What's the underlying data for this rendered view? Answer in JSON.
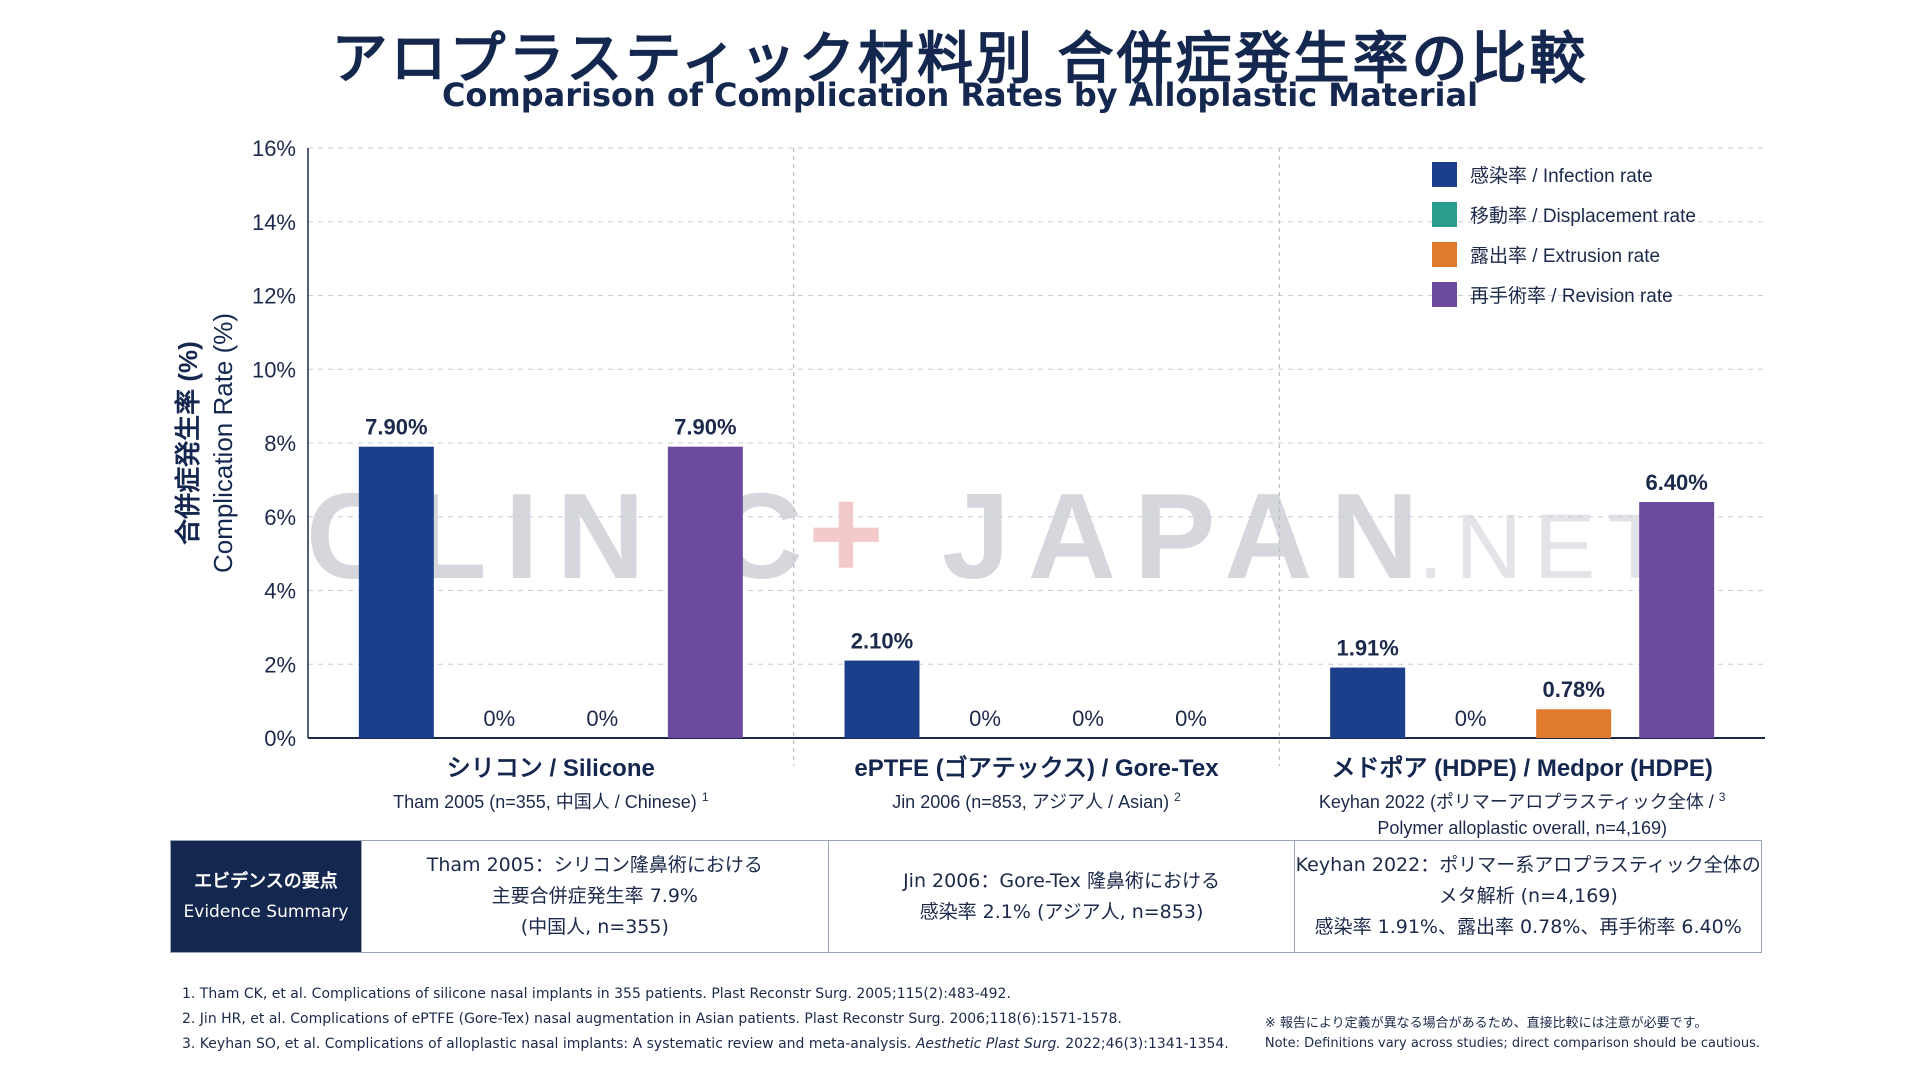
{
  "header": {
    "title": "アロプラスティック材料別 合併症発生率の比較",
    "subtitle": "Comparison of Complication Rates by Alloplastic Material"
  },
  "chart_data": {
    "type": "bar",
    "ylabel_ja": "合併症発生率 (%)",
    "ylabel_en": "Complication Rate (%)",
    "ylim": [
      0,
      16
    ],
    "yticks": [
      "0%",
      "2%",
      "4%",
      "6%",
      "8%",
      "10%",
      "12%",
      "14%",
      "16%"
    ],
    "grid": true,
    "legend_position": "top-right",
    "categories": [
      {
        "ja": "シリコン",
        "en": "Silicone",
        "source": "Tham 2005 (n=355, 中国人 / Chinese)",
        "sup": "1",
        "source2": ""
      },
      {
        "ja": "ePTFE (ゴアテックス)",
        "en": "Gore-Tex",
        "source": "Jin 2006 (n=853, アジア人 / Asian)",
        "sup": "2",
        "source2": ""
      },
      {
        "ja": "メドポア (HDPE)",
        "en": "Medpor (HDPE)",
        "source": "Keyhan 2022 (ポリマーアロプラスティック全体 /",
        "sup": "3",
        "source2": "Polymer alloplastic overall, n=4,169)"
      }
    ],
    "series": [
      {
        "name": "感染率 / Infection rate",
        "color": "#1b3f8b",
        "values": [
          7.9,
          2.1,
          1.91
        ],
        "labels": [
          "7.90%",
          "2.10%",
          "1.91%"
        ]
      },
      {
        "name": "移動率 / Displacement rate",
        "color": "#2a9d8f",
        "values": [
          0,
          0,
          0
        ],
        "labels": [
          "0%",
          "0%",
          "0%"
        ]
      },
      {
        "name": "露出率 / Extrusion rate",
        "color": "#e07b2e",
        "values": [
          0,
          0,
          0.78
        ],
        "labels": [
          "0%",
          "0%",
          "0.78%"
        ]
      },
      {
        "name": "再手術率 / Revision rate",
        "color": "#6c4a9e",
        "values": [
          7.9,
          0,
          6.4
        ],
        "labels": [
          "7.90%",
          "0%",
          "6.40%"
        ]
      }
    ]
  },
  "watermark": {
    "main": "CLINIC",
    "plus": "+",
    "name": "JAPAN",
    "suffix": ".NET"
  },
  "summary": {
    "label_ja": "エビデンスの要点",
    "label_en": "Evidence Summary",
    "cells": [
      {
        "line1": "Tham 2005：シリコン隆鼻術における",
        "line2": "主要合併症発生率 7.9%",
        "line3": "(中国人, n=355)"
      },
      {
        "line1": "Jin 2006：Gore-Tex 隆鼻術における",
        "line2": "感染率 2.1% (アジア人, n=853)",
        "line3": ""
      },
      {
        "line1": "Keyhan 2022：ポリマー系アロプラスティック全体の",
        "line2": "メタ解析 (n=4,169)",
        "line3": "感染率 1.91%、露出率 0.78%、再手術率 6.40%"
      }
    ]
  },
  "references": {
    "r1": "1. Tham CK, et al. Complications of silicone nasal implants in 355 patients. Plast Reconstr Surg. 2005;115(2):483-492.",
    "r2": "2. Jin HR, et al. Complications of ePTFE (Gore-Tex) nasal augmentation in Asian patients. Plast Reconstr Surg. 2006;118(6):1571-1578.",
    "r3_a": "3. Keyhan SO, et al. Complications of alloplastic nasal implants: A systematic review and meta-analysis. ",
    "r3_journal": "Aesthetic Plast Surg.",
    "r3_b": " 2022;46(3):1341-1354."
  },
  "note": {
    "ja": "※ 報告により定義が異なる場合があるため、直接比較には注意が必要です。",
    "en": "Note: Definitions vary across studies; direct comparison should be cautious."
  }
}
